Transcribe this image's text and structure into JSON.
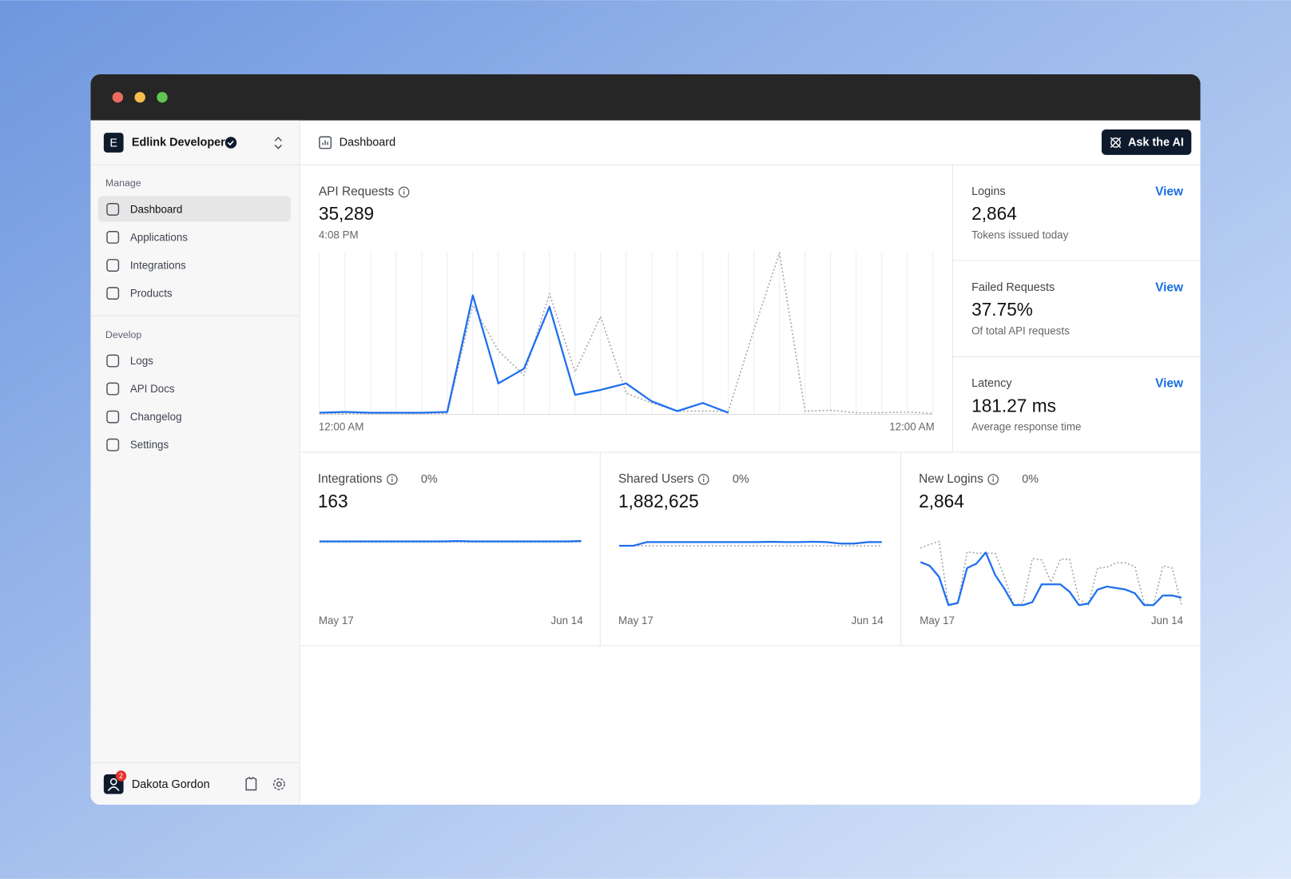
{
  "sidebar": {
    "org": "Edlink Developer",
    "sections": [
      {
        "title": "Manage",
        "items": [
          "Dashboard",
          "Applications",
          "Integrations",
          "Products"
        ]
      },
      {
        "title": "Develop",
        "items": [
          "Logs",
          "API Docs",
          "Changelog",
          "Settings"
        ]
      }
    ],
    "org_initial": "E",
    "user": "Dakota Gordon",
    "notification_count": 2
  },
  "header": {
    "title": "Dashboard",
    "button": "Ask the AI"
  },
  "metrics": [
    {
      "title": "Logins",
      "link": "View",
      "value": "2,864",
      "caption": "Tokens issued today"
    },
    {
      "title": "Failed Requests",
      "link": "View",
      "value": "37.75%",
      "caption": "Of total API requests"
    },
    {
      "title": "Latency",
      "link": "View",
      "value": "181.27 ms",
      "caption": "Average response time"
    }
  ],
  "chart_data": [
    {
      "type": "line",
      "title": "API Requests",
      "value": "35,289",
      "subtitle": "4:08 PM",
      "xlim": [
        0,
        24
      ],
      "xticks": [
        {
          "value": 0,
          "label": "12:00 AM"
        },
        {
          "value": 24,
          "label": "12:00 AM"
        }
      ],
      "ylim": [
        0,
        100
      ],
      "grid": true,
      "series": [
        {
          "color": "#aaaaaa",
          "style": "dotted",
          "values": [
            0.5,
            0.5,
            0.5,
            0.5,
            0.5,
            0.5,
            67,
            39,
            24,
            74,
            26,
            60,
            13,
            7,
            2,
            2,
            2,
            52,
            99,
            2,
            2.5,
            1,
            1,
            1.5,
            0.5
          ]
        },
        {
          "color": "#1d6ef0",
          "style": "solid",
          "values": [
            1,
            1.5,
            1,
            1,
            1,
            1.5,
            73,
            19,
            28,
            66,
            12,
            15,
            19,
            8,
            2,
            7,
            1,
            null,
            null,
            null,
            null,
            null,
            null,
            null,
            null
          ]
        }
      ]
    },
    {
      "type": "line",
      "title": "Integrations",
      "value": "163",
      "change": "0%",
      "xlim": [
        0,
        19
      ],
      "xticks": [
        {
          "value": 0,
          "label": "May 17"
        },
        {
          "value": 19,
          "label": "Jun 14"
        }
      ],
      "ylim": [
        0,
        100
      ],
      "grid": false,
      "series": [
        {
          "color": "#aaaaaa",
          "style": "dotted",
          "values": [
            91,
            91,
            91,
            91,
            91,
            91,
            91,
            91,
            91,
            91,
            91,
            91,
            91,
            91,
            91,
            91,
            91,
            91,
            91,
            91
          ]
        },
        {
          "color": "#1d6ef0",
          "style": "solid",
          "values": [
            92,
            92,
            92,
            92,
            92,
            92,
            92,
            92,
            92,
            92,
            92.5,
            92,
            92,
            92,
            92,
            92,
            92,
            92,
            92,
            92.5
          ]
        }
      ]
    },
    {
      "type": "line",
      "title": "Shared Users",
      "value": "1,882,625",
      "change": "0%",
      "xlim": [
        0,
        19
      ],
      "xticks": [
        {
          "value": 0,
          "label": "May 17"
        },
        {
          "value": 19,
          "label": "Jun 14"
        }
      ],
      "ylim": [
        0,
        100
      ],
      "grid": false,
      "series": [
        {
          "color": "#aaaaaa",
          "style": "dotted",
          "values": [
            86,
            86,
            86,
            86,
            86,
            86,
            86,
            86,
            86,
            86,
            86,
            86,
            86,
            86,
            86,
            86,
            86,
            86,
            86,
            86
          ]
        },
        {
          "color": "#1d6ef0",
          "style": "solid",
          "values": [
            86,
            86,
            91,
            91,
            91,
            91,
            91,
            91,
            91,
            91,
            91,
            91.5,
            91,
            91,
            91.5,
            91,
            89,
            89,
            91,
            91
          ]
        }
      ]
    },
    {
      "type": "line",
      "title": "New Logins",
      "value": "2,864",
      "change": "0%",
      "xlim": [
        0,
        28
      ],
      "xticks": [
        {
          "value": 0,
          "label": "May 17"
        },
        {
          "value": 28,
          "label": "Jun 14"
        }
      ],
      "ylim": [
        0,
        100
      ],
      "grid": false,
      "series": [
        {
          "color": "#aaaaaa",
          "style": "dotted",
          "values": [
            83,
            88,
            92,
            6,
            8,
            78,
            76,
            76,
            76,
            44,
            6,
            9,
            69,
            67,
            37,
            68,
            68,
            14,
            6,
            56,
            57,
            63,
            63,
            58,
            8,
            6,
            59,
            56,
            6
          ]
        },
        {
          "color": "#1d6ef0",
          "style": "solid",
          "values": [
            64,
            59,
            44,
            6,
            9,
            56,
            62,
            77,
            47,
            28,
            6,
            6,
            10,
            34,
            34,
            34,
            24,
            6,
            8,
            27,
            31,
            29,
            27,
            22,
            6,
            6,
            19,
            19,
            16
          ]
        }
      ]
    }
  ]
}
